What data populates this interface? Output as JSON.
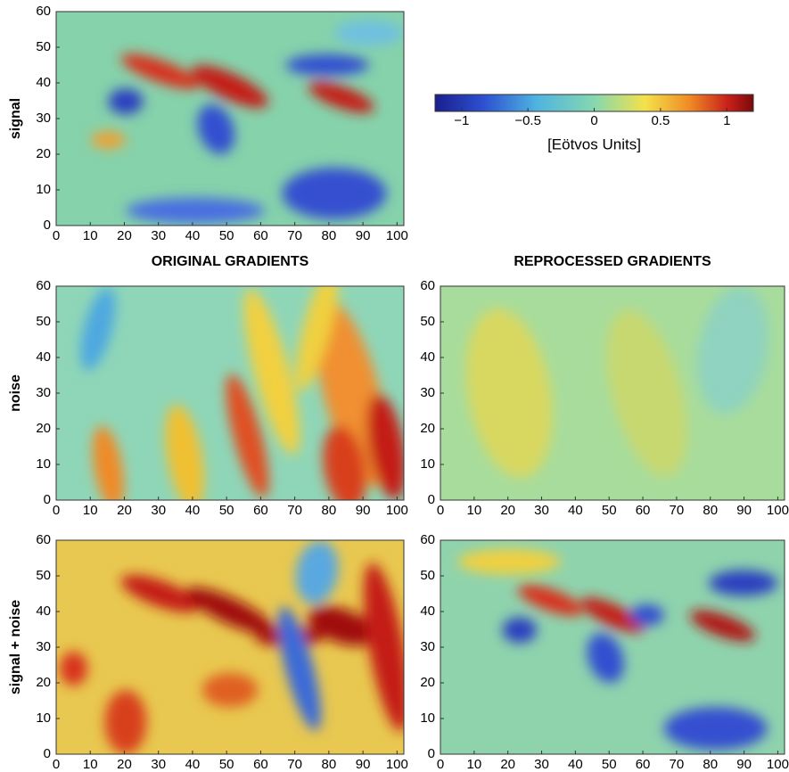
{
  "chart_data": [
    {
      "type": "heatmap",
      "ylabel": "signal",
      "xlim": [
        0,
        102
      ],
      "ylim": [
        0,
        60
      ],
      "xticks": [
        0,
        10,
        20,
        30,
        40,
        50,
        60,
        70,
        80,
        90,
        100
      ],
      "yticks": [
        0,
        10,
        20,
        30,
        40,
        50,
        60
      ]
    },
    {
      "type": "heatmap",
      "title": "ORIGINAL GRADIENTS",
      "ylabel": "noise",
      "xlim": [
        0,
        102
      ],
      "ylim": [
        0,
        60
      ],
      "xticks": [
        0,
        10,
        20,
        30,
        40,
        50,
        60,
        70,
        80,
        90,
        100
      ],
      "yticks": [
        0,
        10,
        20,
        30,
        40,
        50,
        60
      ]
    },
    {
      "type": "heatmap",
      "title": "REPROCESSED GRADIENTS",
      "xlim": [
        0,
        102
      ],
      "ylim": [
        0,
        60
      ],
      "xticks": [
        0,
        10,
        20,
        30,
        40,
        50,
        60,
        70,
        80,
        90,
        100
      ],
      "yticks": [
        0,
        10,
        20,
        30,
        40,
        50,
        60
      ]
    },
    {
      "type": "heatmap",
      "ylabel": "signal + noise",
      "xlim": [
        0,
        102
      ],
      "ylim": [
        0,
        60
      ],
      "xticks": [
        0,
        10,
        20,
        30,
        40,
        50,
        60,
        70,
        80,
        90,
        100
      ],
      "yticks": [
        0,
        10,
        20,
        30,
        40,
        50,
        60
      ]
    },
    {
      "type": "heatmap",
      "xlim": [
        0,
        102
      ],
      "ylim": [
        0,
        60
      ],
      "xticks": [
        0,
        10,
        20,
        30,
        40,
        50,
        60,
        70,
        80,
        90,
        100
      ],
      "yticks": [
        0,
        10,
        20,
        30,
        40,
        50,
        60
      ]
    },
    {
      "type": "colorbar",
      "label": "[Eötvos Units]",
      "xlim": [
        -1.2,
        1.2
      ],
      "xticks": [
        {
          "value": -1,
          "label": "−1"
        },
        {
          "value": -0.5,
          "label": "−0.5"
        },
        0,
        0.5,
        1
      ]
    }
  ]
}
